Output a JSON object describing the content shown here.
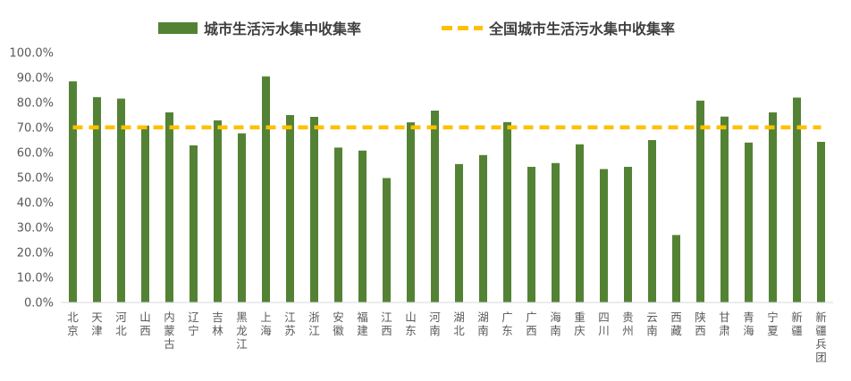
{
  "chart_data": {
    "type": "bar",
    "title": "",
    "xlabel": "",
    "ylabel": "",
    "ylim": [
      0,
      100
    ],
    "yticks": [
      "0.0%",
      "10.0%",
      "20.0%",
      "30.0%",
      "40.0%",
      "50.0%",
      "60.0%",
      "70.0%",
      "80.0%",
      "90.0%",
      "100.0%"
    ],
    "categories": [
      "北京",
      "天津",
      "河北",
      "山西",
      "内蒙古",
      "辽宁",
      "吉林",
      "黑龙江",
      "上海",
      "江苏",
      "浙江",
      "安徽",
      "福建",
      "江西",
      "山东",
      "河南",
      "湖北",
      "湖南",
      "广东",
      "广西",
      "海南",
      "重庆",
      "四川",
      "贵州",
      "云南",
      "西藏",
      "陕西",
      "甘肃",
      "青海",
      "宁夏",
      "新疆",
      "新疆兵团"
    ],
    "series": [
      {
        "name": "城市生活污水集中收集率",
        "type": "bar",
        "color": "#548235",
        "values": [
          88.5,
          82.2,
          81.6,
          70.8,
          76.1,
          62.9,
          72.9,
          67.7,
          90.5,
          75.0,
          74.3,
          62.0,
          60.8,
          49.8,
          72.1,
          76.8,
          55.4,
          59.0,
          72.2,
          54.3,
          55.8,
          63.3,
          53.4,
          54.3,
          65.0,
          27.0,
          80.8,
          74.4,
          64.0,
          76.1,
          82.0,
          64.3
        ]
      },
      {
        "name": "全国城市生活污水集中收集率",
        "type": "line",
        "style": "dashed",
        "color": "#FFC000",
        "value": 70.1
      }
    ],
    "legend": "top-center",
    "grid": false
  }
}
